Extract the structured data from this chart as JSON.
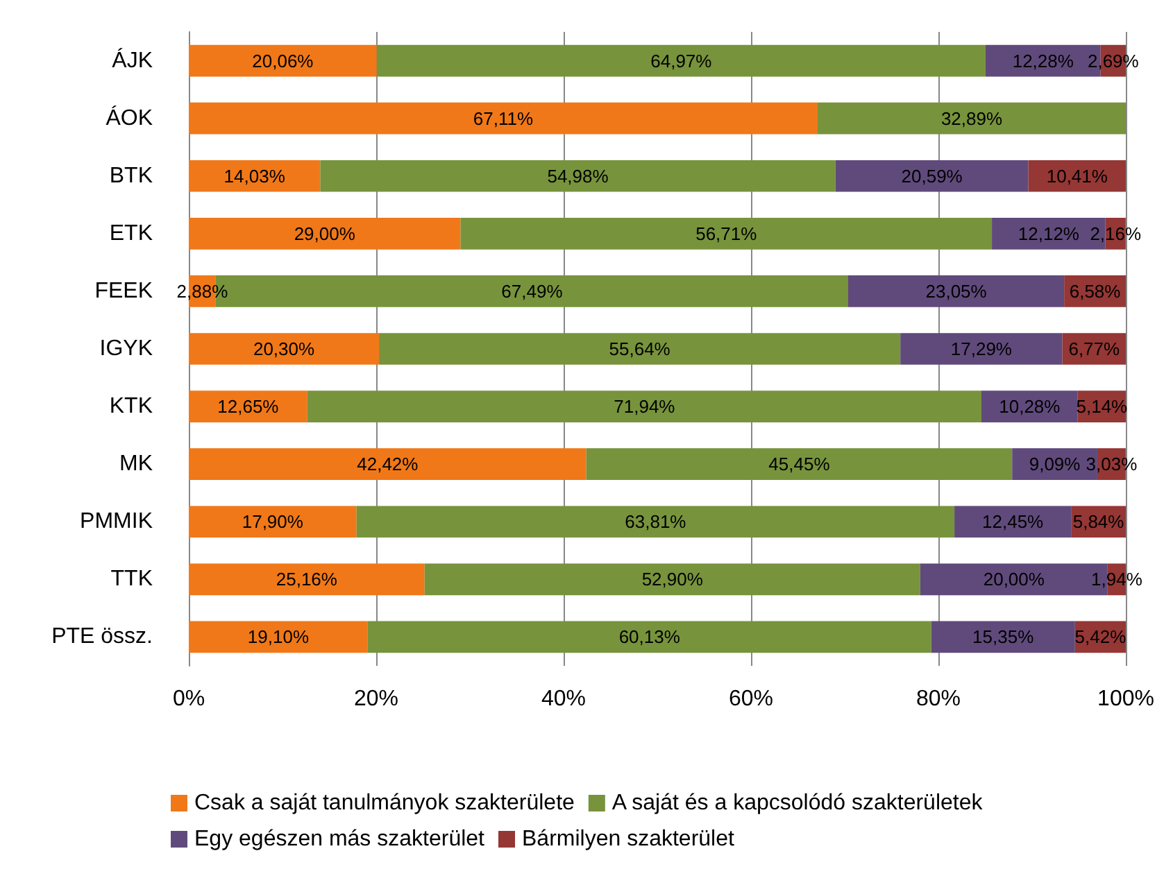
{
  "chart_data": {
    "type": "bar",
    "orientation": "horizontal",
    "stacked": true,
    "categories": [
      "ÁJK",
      "ÁOK",
      "BTK",
      "ETK",
      "FEEK",
      "IGYK",
      "KTK",
      "MK",
      "PMMIK",
      "TTK",
      "PTE össz."
    ],
    "series": [
      {
        "name": "Csak a saját tanulmányok szakterülete",
        "color": "#f07818",
        "values": [
          20.06,
          67.11,
          14.03,
          29.0,
          2.88,
          20.3,
          12.65,
          42.42,
          17.9,
          25.16,
          19.1
        ],
        "value_labels": [
          "20,06%",
          "67,11%",
          "14,03%",
          "29,00%",
          "2,88%",
          "20,30%",
          "12,65%",
          "42,42%",
          "17,90%",
          "25,16%",
          "19,10%"
        ]
      },
      {
        "name": "A saját és a kapcsolódó szakterületek",
        "color": "#77933c",
        "values": [
          64.97,
          32.89,
          54.98,
          56.71,
          67.49,
          55.64,
          71.94,
          45.45,
          63.81,
          52.9,
          60.13
        ],
        "value_labels": [
          "64,97%",
          "32,89%",
          "54,98%",
          "56,71%",
          "67,49%",
          "55,64%",
          "71,94%",
          "45,45%",
          "63,81%",
          "52,90%",
          "60,13%"
        ]
      },
      {
        "name": "Egy egészen más szakterület",
        "color": "#604a7b",
        "values": [
          12.28,
          0,
          20.59,
          12.12,
          23.05,
          17.29,
          10.28,
          9.09,
          12.45,
          20.0,
          15.35
        ],
        "value_labels": [
          "12,28%",
          null,
          "20,59%",
          "12,12%",
          "23,05%",
          "17,29%",
          "10,28%",
          "9,09%",
          "12,45%",
          "20,00%",
          "15,35%"
        ]
      },
      {
        "name": "Bármilyen szakterület",
        "color": "#953735",
        "values": [
          2.69,
          0,
          10.41,
          2.16,
          6.58,
          6.77,
          5.14,
          3.03,
          5.84,
          1.94,
          5.42
        ],
        "value_labels": [
          "2,69%",
          null,
          "10,41%",
          "2,16%",
          "6,58%",
          "6,77%",
          "5,14%",
          "3,03%",
          "5,84%",
          "1,94%",
          "5,42%"
        ]
      }
    ],
    "xlim": [
      0,
      100
    ],
    "xticks": [
      {
        "value": 0,
        "label": "0%"
      },
      {
        "value": 20,
        "label": "20%"
      },
      {
        "value": 40,
        "label": "40%"
      },
      {
        "value": 60,
        "label": "60%"
      },
      {
        "value": 80,
        "label": "80%"
      },
      {
        "value": 100,
        "label": "100%"
      }
    ],
    "grid": "x",
    "legend": "bottom"
  }
}
